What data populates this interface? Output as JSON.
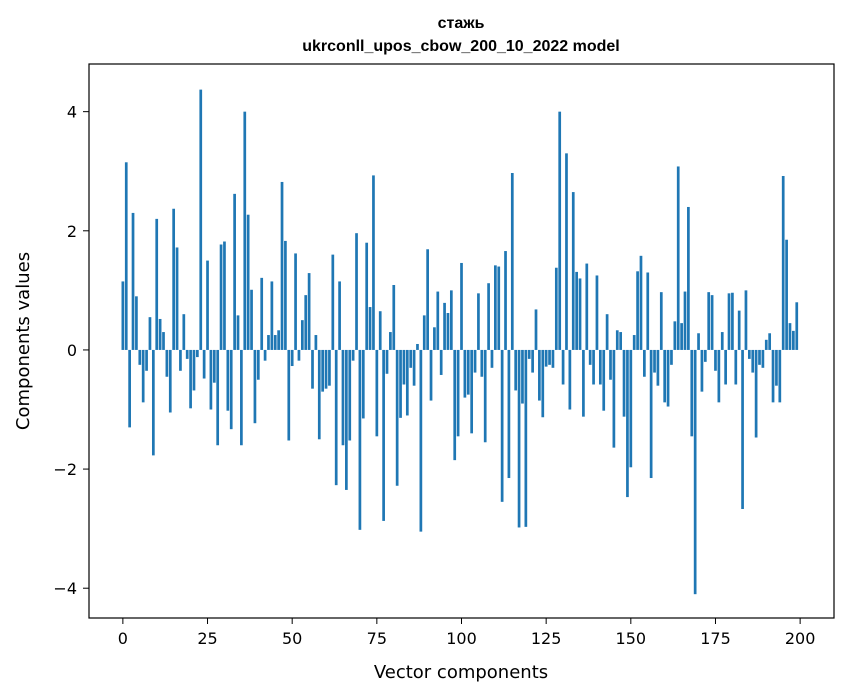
{
  "chart_data": {
    "type": "bar",
    "title": "стажь",
    "subtitle": "ukrconll_upos_cbow_200_10_2022 model",
    "xlabel": "Vector components",
    "ylabel": "Components values",
    "xlim": [
      -10,
      210
    ],
    "ylim": [
      -4.5,
      4.8
    ],
    "xticks": [
      0,
      25,
      50,
      75,
      100,
      125,
      150,
      175,
      200
    ],
    "yticks": [
      -4,
      -2,
      0,
      2,
      4
    ],
    "xtick_labels": [
      "0",
      "25",
      "50",
      "75",
      "100",
      "125",
      "150",
      "175",
      "200"
    ],
    "ytick_labels": [
      "−4",
      "−2",
      "0",
      "2",
      "4"
    ],
    "bar_color": "#1f77b4",
    "x": [
      0,
      1,
      2,
      3,
      4,
      5,
      6,
      7,
      8,
      9,
      10,
      11,
      12,
      13,
      14,
      15,
      16,
      17,
      18,
      19,
      20,
      21,
      22,
      23,
      24,
      25,
      26,
      27,
      28,
      29,
      30,
      31,
      32,
      33,
      34,
      35,
      36,
      37,
      38,
      39,
      40,
      41,
      42,
      43,
      44,
      45,
      46,
      47,
      48,
      49,
      50,
      51,
      52,
      53,
      54,
      55,
      56,
      57,
      58,
      59,
      60,
      61,
      62,
      63,
      64,
      65,
      66,
      67,
      68,
      69,
      70,
      71,
      72,
      73,
      74,
      75,
      76,
      77,
      78,
      79,
      80,
      81,
      82,
      83,
      84,
      85,
      86,
      87,
      88,
      89,
      90,
      91,
      92,
      93,
      94,
      95,
      96,
      97,
      98,
      99,
      100,
      101,
      102,
      103,
      104,
      105,
      106,
      107,
      108,
      109,
      110,
      111,
      112,
      113,
      114,
      115,
      116,
      117,
      118,
      119,
      120,
      121,
      122,
      123,
      124,
      125,
      126,
      127,
      128,
      129,
      130,
      131,
      132,
      133,
      134,
      135,
      136,
      137,
      138,
      139,
      140,
      141,
      142,
      143,
      144,
      145,
      146,
      147,
      148,
      149,
      150,
      151,
      152,
      153,
      154,
      155,
      156,
      157,
      158,
      159,
      160,
      161,
      162,
      163,
      164,
      165,
      166,
      167,
      168,
      169,
      170,
      171,
      172,
      173,
      174,
      175,
      176,
      177,
      178,
      179,
      180,
      181,
      182,
      183,
      184,
      185,
      186,
      187,
      188,
      189,
      190,
      191,
      192,
      193,
      194,
      195,
      196,
      197,
      198,
      199
    ],
    "values": [
      1.15,
      3.15,
      -1.3,
      2.3,
      0.9,
      -0.25,
      -0.88,
      -0.35,
      0.55,
      -1.77,
      2.2,
      0.52,
      0.3,
      -0.45,
      -1.05,
      2.37,
      1.72,
      -0.35,
      0.6,
      -0.15,
      -0.98,
      -0.68,
      -0.12,
      4.37,
      -0.48,
      1.5,
      -1.0,
      -0.55,
      -1.6,
      1.77,
      1.82,
      -1.02,
      -1.33,
      2.62,
      0.58,
      -1.6,
      4.0,
      2.27,
      1.01,
      -1.23,
      -0.5,
      1.21,
      -0.18,
      0.25,
      1.15,
      0.25,
      0.33,
      2.82,
      1.83,
      -1.52,
      -0.27,
      1.62,
      -0.18,
      0.5,
      0.92,
      1.29,
      -0.65,
      0.25,
      -1.5,
      -0.7,
      -0.65,
      -0.6,
      1.6,
      -2.27,
      1.15,
      -1.6,
      -2.35,
      -1.52,
      -0.18,
      1.96,
      -3.02,
      -1.15,
      1.8,
      0.72,
      2.93,
      -1.45,
      0.65,
      -2.87,
      -0.4,
      0.3,
      1.09,
      -2.28,
      -1.14,
      -0.58,
      -1.1,
      -0.3,
      -0.6,
      0.1,
      -3.05,
      0.58,
      1.69,
      -0.85,
      0.38,
      0.98,
      -0.42,
      0.79,
      0.62,
      1.0,
      -1.85,
      -1.45,
      1.46,
      -0.8,
      -0.75,
      -1.4,
      -0.38,
      0.95,
      -0.45,
      -1.55,
      1.12,
      -0.3,
      1.42,
      1.4,
      -2.55,
      1.66,
      -2.15,
      2.97,
      -0.68,
      -2.98,
      -0.9,
      -2.97,
      -0.15,
      -0.38,
      0.68,
      -0.85,
      -1.13,
      -0.28,
      -0.25,
      -0.3,
      1.38,
      4.0,
      -0.58,
      3.3,
      -1.0,
      2.65,
      1.31,
      1.2,
      -1.12,
      1.45,
      -0.25,
      -0.58,
      1.25,
      -0.58,
      -1.02,
      0.6,
      -0.5,
      -1.64,
      0.33,
      0.3,
      -1.12,
      -2.47,
      -1.97,
      0.25,
      1.32,
      1.58,
      -0.45,
      1.3,
      -2.15,
      -0.38,
      -0.6,
      0.97,
      -0.88,
      -0.95,
      -0.25,
      0.48,
      3.08,
      0.45,
      0.98,
      2.4,
      -1.45,
      -4.1,
      0.28,
      -0.7,
      -0.2,
      0.97,
      0.92,
      -0.35,
      -0.88,
      0.3,
      -0.58,
      0.95,
      0.96,
      -0.58,
      0.66,
      -2.67,
      1.0,
      -0.15,
      -0.38,
      -1.47,
      -0.25,
      -0.3,
      0.17,
      0.28,
      -0.88,
      -0.6,
      -0.88,
      2.92,
      1.85,
      0.45,
      0.32,
      0.8
    ]
  }
}
